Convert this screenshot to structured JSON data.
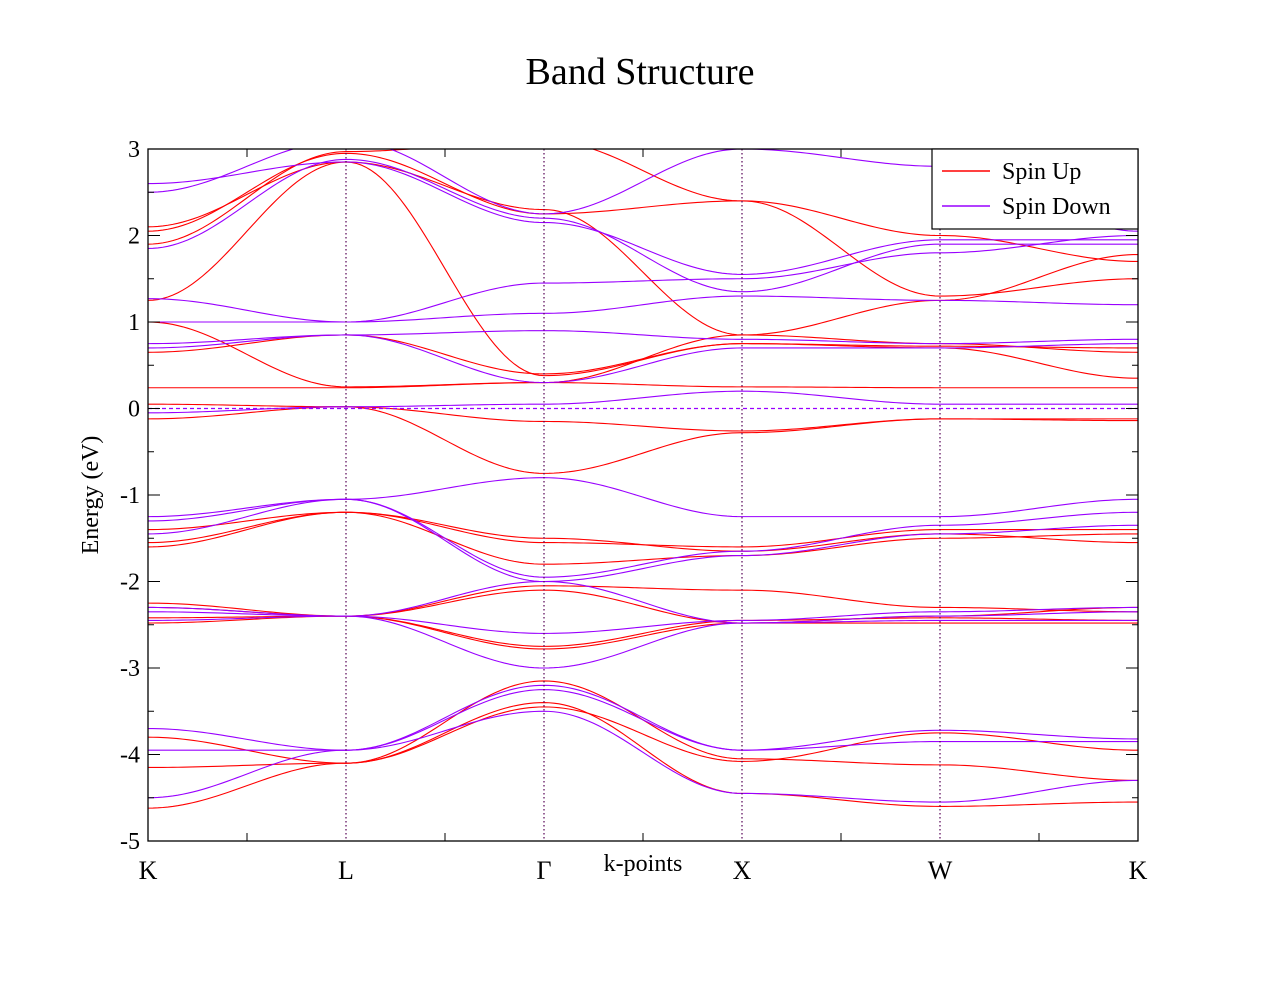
{
  "chart_data": {
    "type": "line",
    "title": "Band Structure",
    "xlabel": "k-points",
    "ylabel": "Energy (eV)",
    "ylim": [
      -5,
      3
    ],
    "yticks": [
      "3",
      "2",
      "1",
      "0",
      "-1",
      "-2",
      "-3",
      "-4",
      "-5"
    ],
    "kpoints": [
      {
        "label": "K",
        "pos": 0
      },
      {
        "label": "L",
        "pos": 1
      },
      {
        "label": "Γ",
        "pos": 2
      },
      {
        "label": "X",
        "pos": 3
      },
      {
        "label": "W",
        "pos": 4
      },
      {
        "label": "K",
        "pos": 5
      }
    ],
    "fermi_level": 0,
    "grid": false,
    "legend_position": "top-right",
    "colors": {
      "spin_up": "#ff0000",
      "spin_down": "#9900ff",
      "markers": "#550055"
    },
    "series": [
      {
        "name": "Spin Up",
        "bands": [
          [
            -4.62,
            -4.1,
            -3.15,
            -4.05,
            -4.12,
            -4.3
          ],
          [
            -4.15,
            -4.1,
            -3.4,
            -4.45,
            -4.6,
            -4.55
          ],
          [
            -3.8,
            -4.1,
            -3.45,
            -4.08,
            -3.75,
            -3.95
          ],
          [
            -2.48,
            -2.4,
            -2.75,
            -2.45,
            -2.42,
            -2.45
          ],
          [
            -2.42,
            -2.4,
            -2.1,
            -2.48,
            -2.4,
            -2.3
          ],
          [
            -2.3,
            -2.4,
            -2.05,
            -2.1,
            -2.3,
            -2.35
          ],
          [
            -2.25,
            -2.4,
            -2.78,
            -2.48,
            -2.48,
            -2.48
          ],
          [
            -1.6,
            -1.2,
            -1.5,
            -1.65,
            -1.45,
            -1.55
          ],
          [
            -1.55,
            -1.2,
            -1.8,
            -1.7,
            -1.5,
            -1.45
          ],
          [
            -1.4,
            -1.2,
            -1.55,
            -1.6,
            -1.4,
            -1.4
          ],
          [
            -0.12,
            0.02,
            -0.75,
            -0.28,
            -0.12,
            -0.12
          ],
          [
            0.05,
            0.02,
            -0.15,
            -0.26,
            -0.12,
            -0.14
          ],
          [
            0.24,
            0.24,
            0.3,
            0.25,
            0.24,
            0.24
          ],
          [
            0.65,
            0.85,
            0.4,
            0.75,
            0.72,
            0.7
          ],
          [
            1.0,
            0.25,
            0.3,
            0.85,
            0.75,
            0.65
          ],
          [
            1.25,
            2.85,
            0.38,
            0.75,
            0.7,
            0.35
          ],
          [
            2.05,
            2.95,
            2.25,
            2.4,
            1.3,
            1.5
          ],
          [
            2.1,
            2.85,
            2.3,
            0.85,
            1.25,
            1.78
          ],
          [
            1.9,
            2.97,
            3.1,
            2.4,
            2.0,
            1.7
          ]
        ]
      },
      {
        "name": "Spin Down",
        "bands": [
          [
            -4.5,
            -3.95,
            -3.5,
            -4.45,
            -4.55,
            -4.3
          ],
          [
            -3.95,
            -3.95,
            -3.2,
            -3.95,
            -3.85,
            -3.85
          ],
          [
            -3.7,
            -3.95,
            -3.25,
            -3.95,
            -3.72,
            -3.82
          ],
          [
            -2.35,
            -2.4,
            -2.6,
            -2.45,
            -2.35,
            -2.3
          ],
          [
            -2.3,
            -2.4,
            -3.0,
            -2.48,
            -2.45,
            -2.45
          ],
          [
            -2.45,
            -2.4,
            -2.0,
            -2.48,
            -2.4,
            -2.35
          ],
          [
            -1.3,
            -1.05,
            -0.8,
            -1.25,
            -1.25,
            -1.05
          ],
          [
            -1.25,
            -1.05,
            -1.95,
            -1.65,
            -1.35,
            -1.2
          ],
          [
            -1.45,
            -1.05,
            -2.0,
            -1.7,
            -1.45,
            -1.35
          ],
          [
            -0.05,
            0.02,
            0.05,
            0.2,
            0.05,
            0.05
          ],
          [
            0.7,
            0.85,
            0.9,
            0.8,
            0.75,
            0.8
          ],
          [
            0.75,
            0.85,
            0.3,
            0.7,
            0.7,
            0.75
          ],
          [
            1.0,
            1.0,
            1.1,
            1.3,
            1.25,
            1.2
          ],
          [
            1.27,
            1.0,
            1.45,
            1.5,
            1.8,
            2.0
          ],
          [
            2.5,
            3.1,
            2.25,
            3.0,
            2.8,
            2.05
          ],
          [
            2.6,
            2.85,
            2.15,
            1.55,
            1.95,
            1.95
          ],
          [
            1.85,
            2.88,
            2.2,
            1.35,
            1.9,
            1.9
          ]
        ]
      }
    ]
  }
}
